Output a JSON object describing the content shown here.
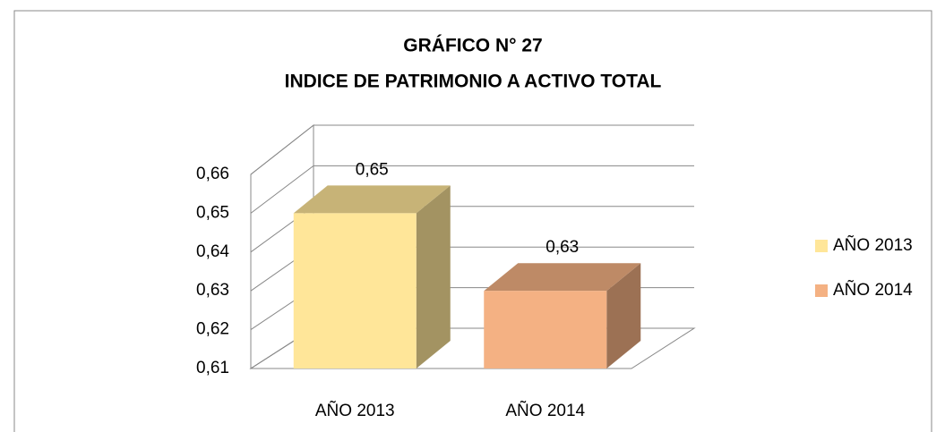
{
  "chart_data": {
    "type": "bar3d",
    "title": "GRÁFICO N° 27",
    "subtitle": "INDICE DE PATRIMONIO A ACTIVO TOTAL",
    "categories": [
      "AÑO 2013",
      "AÑO 2014"
    ],
    "series": [
      {
        "name": "AÑO 2013",
        "color": "#ffe699",
        "values": [
          0.65,
          null
        ],
        "value_labels": [
          "0,65",
          null
        ]
      },
      {
        "name": "AÑO 2014",
        "color": "#f4b183",
        "values": [
          null,
          0.63
        ],
        "value_labels": [
          null,
          "0,63"
        ]
      }
    ],
    "ylim": [
      0.61,
      0.66
    ],
    "yticks": [
      {
        "value": 0.61,
        "label": "0,61"
      },
      {
        "value": 0.62,
        "label": "0,62"
      },
      {
        "value": 0.63,
        "label": "0,63"
      },
      {
        "value": 0.64,
        "label": "0,64"
      },
      {
        "value": 0.65,
        "label": "0,65"
      },
      {
        "value": 0.66,
        "label": "0,66"
      }
    ],
    "grid": true,
    "legend": "right"
  }
}
